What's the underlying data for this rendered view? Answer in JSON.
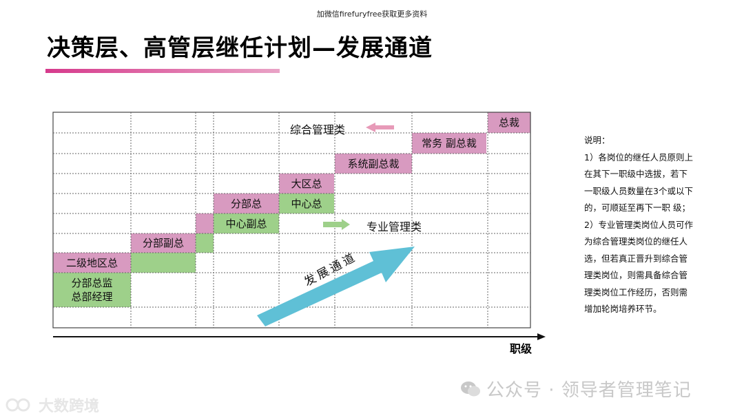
{
  "header": {
    "note": "加微信firefuryfree获取更多资料",
    "title": "决策层、高管层继任计划—发展通道"
  },
  "colors": {
    "pink": "#d89ac0",
    "green": "#9ed08a",
    "arrow_blue": "#5fc0d6",
    "title_bar_start": "#d63a8c",
    "title_bar_end": "#e9a3c6",
    "grid_line": "#555555"
  },
  "diagram": {
    "boxes": {
      "ceo": "总裁",
      "exec_vp": "常务 副总裁",
      "system_vp": "系统副总裁",
      "region_head": "大区总",
      "branch_head": "分部总",
      "center_head": "中心总",
      "center_deputy": "中心副总",
      "branch_deputy": "分部副总",
      "regional_head_l2": "二级地区总",
      "branch_director": "分部总监",
      "hq_manager": "总部经理"
    },
    "labels": {
      "general_mgmt": "综合管理类",
      "professional_mgmt": "专业管理类",
      "dev_channel": "发展通道",
      "x_axis": "职级"
    }
  },
  "notes": {
    "lines": [
      "说明：",
      "1）各岗位的继任人员原则上",
      "在其下一职级中选拔，若下",
      "一职级人员数量在3个或以下",
      "的，可顺延至再下一职 级；",
      "2）专业管理类岗位人员可作",
      "为综合管理类岗位的继任人",
      "选，但若真正晋升到综合管",
      "理类岗位，则需具备综合管",
      "理类岗位工作经历，否则需",
      "增加轮岗培养环节。"
    ]
  },
  "watermarks": {
    "right": "公众号 · 领导者管理笔记",
    "left": "大数跨境"
  }
}
